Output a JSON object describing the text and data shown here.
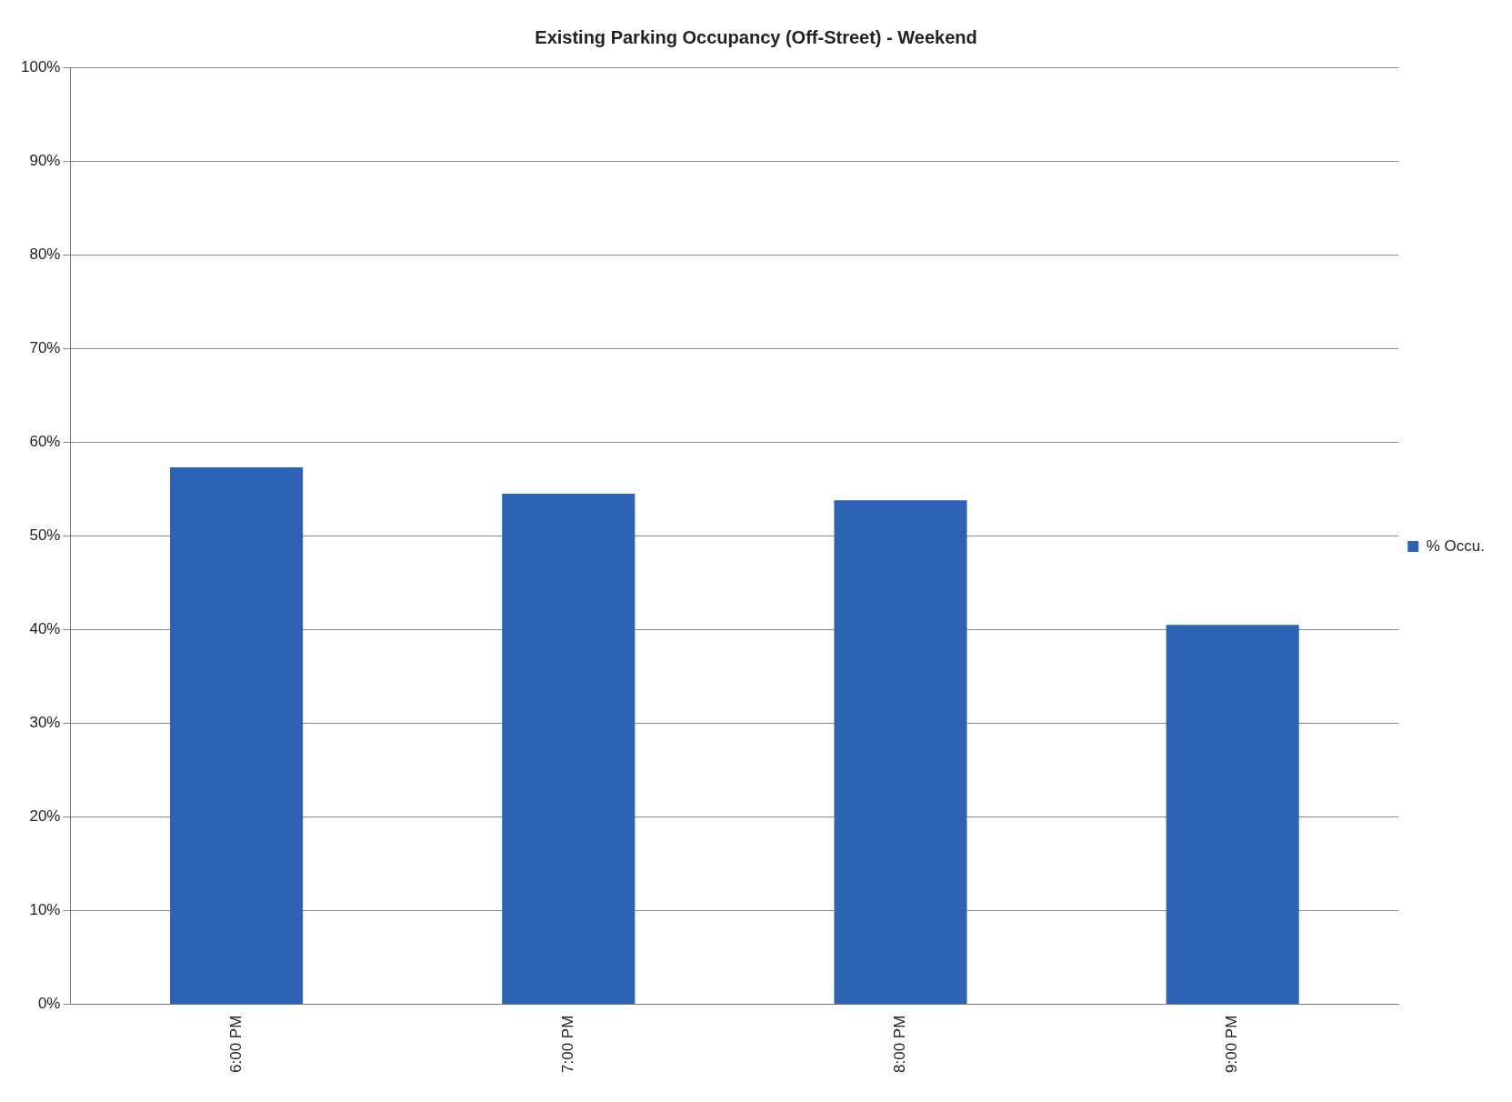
{
  "chart_data": {
    "type": "bar",
    "title": "Existing Parking Occupancy (Off-Street) - Weekend",
    "categories": [
      "6:00 PM",
      "7:00 PM",
      "8:00 PM",
      "9:00 PM"
    ],
    "series": [
      {
        "name": "% Occu.",
        "color": "#2d62b5",
        "values": [
          57.3,
          54.5,
          53.8,
          40.5
        ]
      }
    ],
    "ylim": [
      0,
      100
    ],
    "yticks": [
      {
        "value": 0,
        "label": "0%"
      },
      {
        "value": 10,
        "label": "10%"
      },
      {
        "value": 20,
        "label": "20%"
      },
      {
        "value": 30,
        "label": "30%"
      },
      {
        "value": 40,
        "label": "40%"
      },
      {
        "value": 50,
        "label": "50%"
      },
      {
        "value": 60,
        "label": "60%"
      },
      {
        "value": 70,
        "label": "70%"
      },
      {
        "value": 80,
        "label": "80%"
      },
      {
        "value": 90,
        "label": "90%"
      },
      {
        "value": 100,
        "label": "100%"
      }
    ],
    "grid": "y",
    "legend": "right"
  }
}
